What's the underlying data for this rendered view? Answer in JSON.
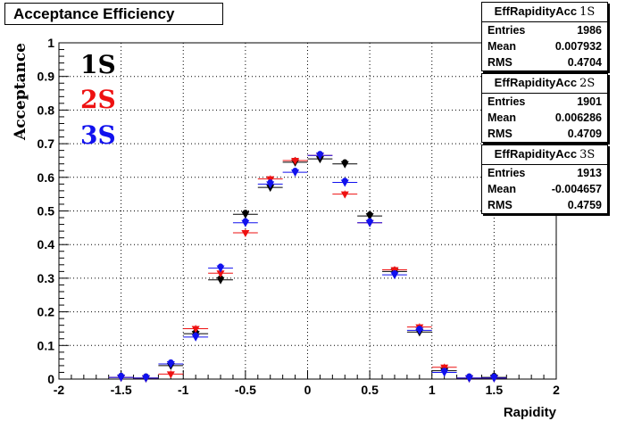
{
  "title": "Acceptance Efficiency",
  "colors": {
    "frame": "#000000",
    "grid": "#000000",
    "s1": "#000000",
    "s2": "#ee1111",
    "s3": "#1111ee"
  },
  "stats_boxes": [
    {
      "name": "EffRapidityAcc",
      "tag": "1S",
      "entries_label": "Entries",
      "entries": "1986",
      "mean_label": "Mean",
      "mean": "0.007932",
      "rms_label": "RMS",
      "rms": "0.4704"
    },
    {
      "name": "EffRapidityAcc",
      "tag": "2S",
      "entries_label": "Entries",
      "entries": "1901",
      "mean_label": "Mean",
      "mean": "0.006286",
      "rms_label": "RMS",
      "rms": "0.4709"
    },
    {
      "name": "EffRapidityAcc",
      "tag": "3S",
      "entries_label": "Entries",
      "entries": "1913",
      "mean_label": "Mean",
      "mean": "-0.004657",
      "rms_label": "RMS",
      "rms": "0.4759"
    }
  ],
  "legend": {
    "s1": "1S",
    "s2": "2S",
    "s3": "3S"
  },
  "chart_data": {
    "type": "scatter",
    "title": "Acceptance Efficiency",
    "xlabel": "Rapidity",
    "ylabel": "Acceptance",
    "xlim": [
      -2,
      2
    ],
    "ylim": [
      0,
      1
    ],
    "xticks": [
      "-2",
      "-1.5",
      "-1",
      "-0.5",
      "0",
      "0.5",
      "1",
      "1.5",
      "2"
    ],
    "xtick_values": [
      -2,
      -1.5,
      -1,
      -0.5,
      0,
      0.5,
      1,
      1.5,
      2
    ],
    "yticks": [
      "0",
      "0.1",
      "0.2",
      "0.3",
      "0.4",
      "0.5",
      "0.6",
      "0.7",
      "0.8",
      "0.9",
      "1"
    ],
    "ytick_values": [
      0,
      0.1,
      0.2,
      0.3,
      0.4,
      0.5,
      0.6,
      0.7,
      0.8,
      0.9,
      1.0
    ],
    "grid": true,
    "x": [
      -1.5,
      -1.3,
      -1.1,
      -0.9,
      -0.7,
      -0.5,
      -0.3,
      -0.1,
      0.1,
      0.3,
      0.5,
      0.7,
      0.9,
      1.1,
      1.3,
      1.5
    ],
    "x_error": 0.1,
    "series": [
      {
        "name": "1S",
        "color": "#000000",
        "values": [
          0.005,
          0.003,
          0.04,
          0.135,
          0.295,
          0.49,
          0.57,
          0.645,
          0.655,
          0.64,
          0.485,
          0.32,
          0.14,
          0.025,
          0.003,
          0.005
        ]
      },
      {
        "name": "2S",
        "color": "#ee1111",
        "values": [
          0.005,
          0.003,
          0.015,
          0.15,
          0.315,
          0.435,
          0.595,
          0.65,
          0.665,
          0.55,
          0.465,
          0.325,
          0.155,
          0.035,
          0.003,
          0.003
        ]
      },
      {
        "name": "3S",
        "color": "#1111ee",
        "values": [
          0.005,
          0.003,
          0.045,
          0.125,
          0.33,
          0.465,
          0.58,
          0.615,
          0.665,
          0.585,
          0.465,
          0.31,
          0.145,
          0.02,
          0.003,
          0.003
        ]
      }
    ]
  }
}
